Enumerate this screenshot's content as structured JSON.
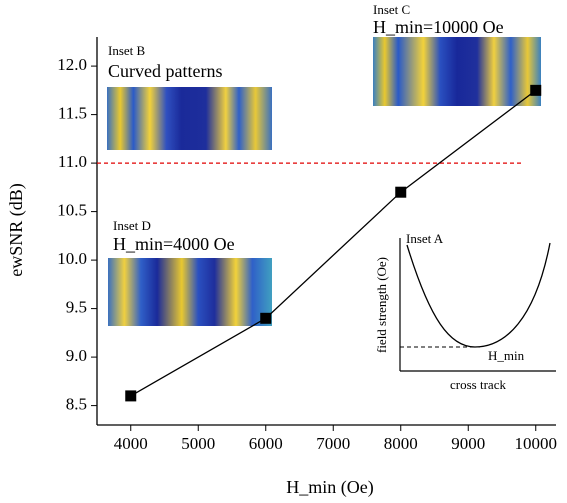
{
  "chart_data": {
    "type": "line",
    "x_label": "H_min (Oe)",
    "y_label": "ewSNR (dB)",
    "x": [
      4000,
      6000,
      8000,
      10000
    ],
    "series": [
      {
        "color": "#000000",
        "values": [
          8.6,
          9.4,
          10.7,
          11.75
        ]
      }
    ],
    "xlim": [
      3500,
      10300
    ],
    "xticks": [
      4000,
      5000,
      6000,
      7000,
      8000,
      9000,
      10000
    ],
    "ylim": [
      8.3,
      12.3
    ],
    "yticks": [
      8.5,
      {
        "value": 9,
        "label": "9.0"
      },
      9.5,
      {
        "value": 10,
        "label": "10.0"
      },
      10.5,
      {
        "value": 11,
        "label": "11.0"
      },
      11.5,
      {
        "value": 12,
        "label": "12.0"
      }
    ],
    "reference_line": {
      "y": 11,
      "color": "#e00000"
    },
    "insets": {
      "a": {
        "label": "Inset A",
        "y_label": "field strength (Oe)",
        "x_label": "cross track",
        "marker": "H_min"
      },
      "b": {
        "label": "Inset B",
        "text": "Curved patterns"
      },
      "c": {
        "label": "Inset C",
        "text": "H_min=10000 Oe"
      },
      "d": {
        "label": "Inset D",
        "text": "H_min=4000 Oe"
      }
    }
  }
}
